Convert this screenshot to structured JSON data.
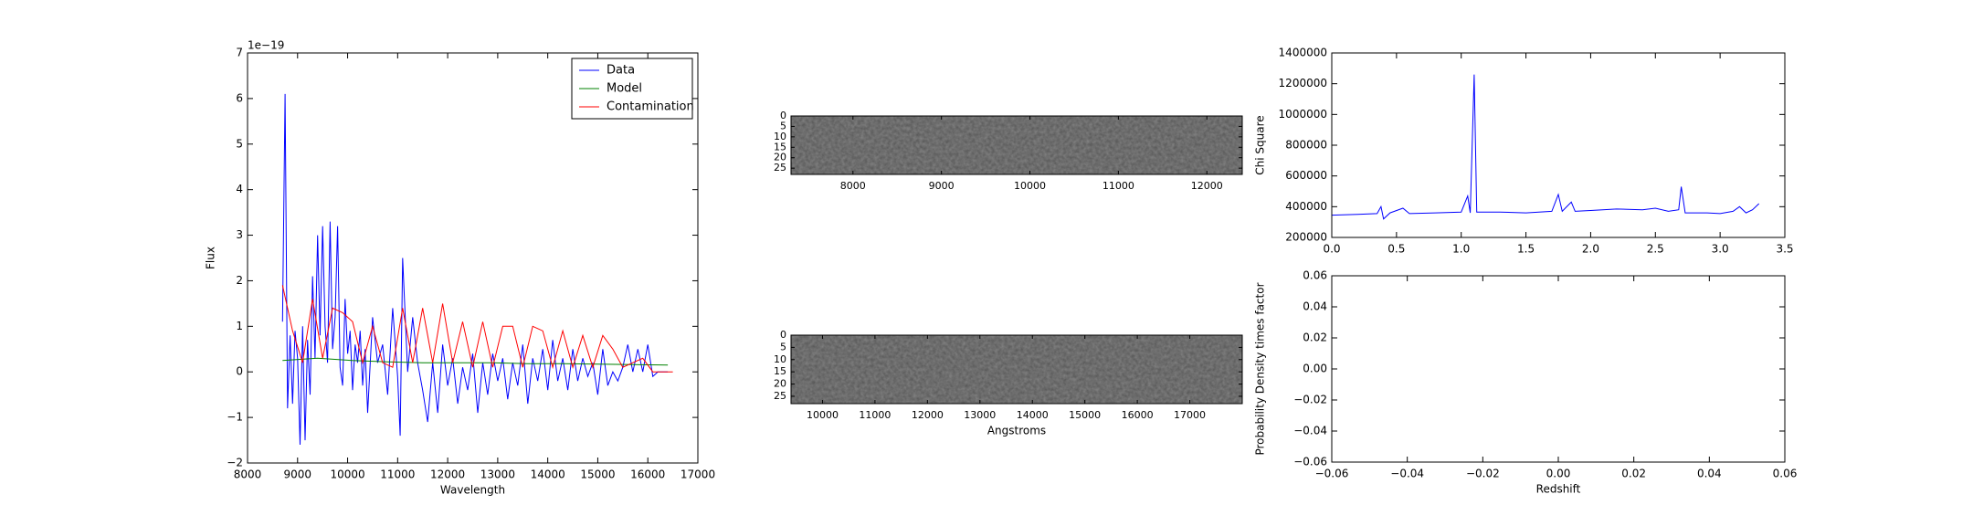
{
  "chart_data": [
    {
      "type": "line",
      "xlabel": "Wavelength",
      "ylabel": "Flux",
      "y_offset_label": "1e−19",
      "xlim": [
        8000,
        17000
      ],
      "xticks": [
        8000,
        9000,
        10000,
        11000,
        12000,
        13000,
        14000,
        15000,
        16000,
        17000
      ],
      "ylim": [
        -2,
        7
      ],
      "yticks": [
        {
          "value": -2,
          "label": "−2"
        },
        {
          "value": -1,
          "label": "−1"
        },
        0,
        1,
        2,
        3,
        4,
        5,
        6,
        7
      ],
      "legend": "upper right",
      "series": [
        {
          "name": "Data",
          "color": "#0000ff",
          "x": [
            8700,
            8750,
            8800,
            8850,
            8900,
            8950,
            9000,
            9050,
            9100,
            9150,
            9200,
            9250,
            9300,
            9350,
            9400,
            9450,
            9500,
            9550,
            9600,
            9650,
            9700,
            9750,
            9800,
            9850,
            9900,
            9950,
            10000,
            10050,
            10100,
            10150,
            10200,
            10250,
            10300,
            10350,
            10400,
            10500,
            10600,
            10700,
            10800,
            10900,
            11000,
            11050,
            11100,
            11200,
            11300,
            11400,
            11500,
            11600,
            11700,
            11800,
            11900,
            12000,
            12100,
            12200,
            12300,
            12400,
            12500,
            12600,
            12700,
            12800,
            12900,
            13000,
            13100,
            13200,
            13300,
            13400,
            13500,
            13600,
            13700,
            13800,
            13900,
            14000,
            14100,
            14200,
            14300,
            14400,
            14500,
            14600,
            14700,
            14800,
            14900,
            15000,
            15100,
            15200,
            15300,
            15400,
            15500,
            15600,
            15700,
            15800,
            15900,
            16000,
            16100,
            16200,
            16300,
            16400
          ],
          "values": [
            1.1,
            6.1,
            -0.8,
            0.8,
            -0.7,
            0.9,
            0.3,
            -1.6,
            1.0,
            -1.5,
            0.7,
            -0.5,
            2.1,
            0.3,
            3.0,
            0.8,
            3.2,
            1.0,
            0.2,
            3.3,
            0.5,
            1.2,
            3.2,
            0.1,
            -0.3,
            1.6,
            0.4,
            0.9,
            -0.4,
            0.6,
            0.2,
            0.9,
            -0.3,
            0.5,
            -0.9,
            1.2,
            0.2,
            0.6,
            -0.5,
            1.4,
            -0.1,
            -1.4,
            2.5,
            0.0,
            1.2,
            0.2,
            -0.4,
            -1.1,
            0.2,
            -0.9,
            0.6,
            -0.3,
            0.3,
            -0.7,
            0.1,
            -0.4,
            0.4,
            -0.9,
            0.2,
            -0.5,
            0.4,
            -0.2,
            0.3,
            -0.6,
            0.2,
            -0.3,
            0.6,
            -0.7,
            0.3,
            -0.2,
            0.5,
            -0.4,
            0.7,
            -0.2,
            0.3,
            -0.4,
            0.5,
            -0.2,
            0.3,
            -0.1,
            0.2,
            -0.5,
            0.5,
            -0.3,
            0.0,
            -0.2,
            0.1,
            0.6,
            0.0,
            0.5,
            0.0,
            0.6,
            -0.1,
            0.0,
            0.0,
            0.0
          ]
        },
        {
          "name": "Model",
          "color": "#008000",
          "x": [
            8700,
            9400,
            10100,
            10800,
            11500,
            12200,
            12900,
            13600,
            14300,
            15000,
            15700,
            16400
          ],
          "values": [
            0.25,
            0.3,
            0.25,
            0.22,
            0.2,
            0.2,
            0.2,
            0.18,
            0.18,
            0.17,
            0.16,
            0.15
          ]
        },
        {
          "name": "Contamination",
          "color": "#ff0000",
          "x": [
            8700,
            8900,
            9100,
            9300,
            9500,
            9700,
            9900,
            10100,
            10300,
            10500,
            10700,
            10900,
            11100,
            11300,
            11500,
            11700,
            11900,
            12100,
            12300,
            12500,
            12700,
            12900,
            13100,
            13300,
            13500,
            13700,
            13900,
            14100,
            14300,
            14500,
            14700,
            14900,
            15100,
            15300,
            15500,
            15700,
            15900,
            16100,
            16300,
            16500
          ],
          "values": [
            1.9,
            0.9,
            0.2,
            1.6,
            0.3,
            1.4,
            1.3,
            1.1,
            0.2,
            1.0,
            0.2,
            0.1,
            1.4,
            0.2,
            1.4,
            0.2,
            1.5,
            0.2,
            1.1,
            0.1,
            1.1,
            0.1,
            1.0,
            1.0,
            0.1,
            1.0,
            0.9,
            0.1,
            0.9,
            0.1,
            0.8,
            0.1,
            0.8,
            0.5,
            0.1,
            0.2,
            0.3,
            0.0,
            0.0,
            0.0
          ]
        }
      ]
    },
    {
      "type": "image",
      "xlim": [
        7300,
        12400
      ],
      "xticks": [
        8000,
        9000,
        10000,
        11000,
        12000
      ],
      "ylim": [
        28,
        0
      ],
      "yticks": [
        0,
        5,
        10,
        15,
        20,
        25
      ]
    },
    {
      "type": "image",
      "xlabel": "Angstroms",
      "xlim": [
        9400,
        18000
      ],
      "xticks": [
        10000,
        11000,
        12000,
        13000,
        14000,
        15000,
        16000,
        17000
      ],
      "ylim": [
        28,
        0
      ],
      "yticks": [
        0,
        5,
        10,
        15,
        20,
        25
      ]
    },
    {
      "type": "line",
      "ylabel": "Chi Square",
      "xlim": [
        0,
        3.5
      ],
      "xticks": [
        {
          "value": 0,
          "label": "0.0"
        },
        0.5,
        {
          "value": 1,
          "label": "1.0"
        },
        1.5,
        {
          "value": 2,
          "label": "2.0"
        },
        2.5,
        {
          "value": 3,
          "label": "3.0"
        },
        3.5
      ],
      "ylim": [
        200000,
        1400000
      ],
      "yticks": [
        200000,
        400000,
        600000,
        800000,
        1000000,
        1200000,
        1400000
      ],
      "series": [
        {
          "color": "#0000ff",
          "x": [
            0,
            0.2,
            0.35,
            0.38,
            0.4,
            0.45,
            0.55,
            0.6,
            0.8,
            1.0,
            1.05,
            1.07,
            1.1,
            1.12,
            1.3,
            1.5,
            1.7,
            1.75,
            1.78,
            1.85,
            1.88,
            2.0,
            2.2,
            2.4,
            2.5,
            2.6,
            2.68,
            2.7,
            2.73,
            2.9,
            3.0,
            3.1,
            3.15,
            3.2,
            3.25,
            3.3
          ],
          "values": [
            345000,
            350000,
            355000,
            400000,
            320000,
            360000,
            390000,
            355000,
            360000,
            365000,
            470000,
            360000,
            1260000,
            365000,
            365000,
            360000,
            370000,
            480000,
            370000,
            430000,
            370000,
            375000,
            385000,
            380000,
            390000,
            370000,
            380000,
            530000,
            360000,
            360000,
            355000,
            370000,
            400000,
            360000,
            380000,
            420000
          ]
        }
      ]
    },
    {
      "type": "line",
      "xlabel": "Redshift",
      "ylabel": "Probability Density times factor",
      "xlim": [
        -0.06,
        0.06
      ],
      "xticks": [
        {
          "value": -0.06,
          "label": "−0.06"
        },
        {
          "value": -0.04,
          "label": "−0.04"
        },
        {
          "value": -0.02,
          "label": "−0.02"
        },
        {
          "value": 0,
          "label": "0.00"
        },
        0.02,
        0.04,
        0.06
      ],
      "ylim": [
        -0.06,
        0.06
      ],
      "yticks": [
        {
          "value": -0.06,
          "label": "−0.06"
        },
        {
          "value": -0.04,
          "label": "−0.04"
        },
        {
          "value": -0.02,
          "label": "−0.02"
        },
        {
          "value": 0,
          "label": "0.00"
        },
        0.02,
        0.04,
        0.06
      ]
    }
  ]
}
